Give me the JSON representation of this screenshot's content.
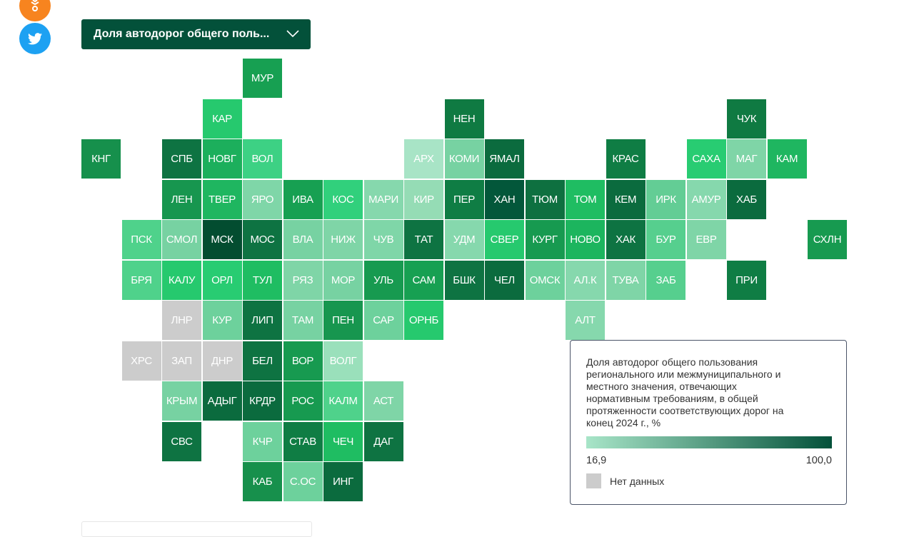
{
  "dropdown": {
    "label": "Доля автодорог общего поль...",
    "icon": "chevron-down-icon"
  },
  "social": [
    {
      "icon": "odnoklassniki-icon",
      "color": "#f7841f"
    },
    {
      "icon": "twitter-icon",
      "color": "#1da1f2"
    }
  ],
  "map": {
    "no_data_color": "#cccccc",
    "tiles": [
      {
        "label": "МУР",
        "color": "#17a052"
      },
      {
        "label": "КАР",
        "color": "#26c96e"
      },
      {
        "label": "НЕН",
        "color": "#0f7a42"
      },
      {
        "label": "ЧУК",
        "color": "#0f7a42"
      },
      {
        "label": "КНГ",
        "color": "#16904c"
      },
      {
        "label": "СПБ",
        "color": "#0e7342"
      },
      {
        "label": "НОВГ",
        "color": "#1caf5c"
      },
      {
        "label": "ВОЛ",
        "color": "#3dd184"
      },
      {
        "label": "АРХ",
        "color": "#a8e4c6"
      },
      {
        "label": "КОМИ",
        "color": "#77d2a2"
      },
      {
        "label": "ЯМАЛ",
        "color": "#0b6b3e"
      },
      {
        "label": "КРАС",
        "color": "#0f7d44"
      },
      {
        "label": "САХА",
        "color": "#28cc72"
      },
      {
        "label": "МАГ",
        "color": "#7fd5a7"
      },
      {
        "label": "КАМ",
        "color": "#1fb660"
      },
      {
        "label": "ЛЕН",
        "color": "#17964f"
      },
      {
        "label": "ТВЕР",
        "color": "#1fb660"
      },
      {
        "label": "ЯРО",
        "color": "#7fd6a8"
      },
      {
        "label": "ИВА",
        "color": "#17a052"
      },
      {
        "label": "КОС",
        "color": "#31d07c"
      },
      {
        "label": "МАРИ",
        "color": "#86d8ad"
      },
      {
        "label": "КИР",
        "color": "#95dcb5"
      },
      {
        "label": "ПЕР",
        "color": "#0f7d44"
      },
      {
        "label": "ХАН",
        "color": "#03573a"
      },
      {
        "label": "ТЮМ",
        "color": "#0e7040"
      },
      {
        "label": "ТОМ",
        "color": "#1fbd62"
      },
      {
        "label": "КЕМ",
        "color": "#0b6b3e"
      },
      {
        "label": "ИРК",
        "color": "#63cd95"
      },
      {
        "label": "АМУР",
        "color": "#86d8ad"
      },
      {
        "label": "ХАБ",
        "color": "#0b6b3e"
      },
      {
        "label": "ПСК",
        "color": "#4fd28b"
      },
      {
        "label": "СМОЛ",
        "color": "#77d2a2"
      },
      {
        "label": "МСК",
        "color": "#034d30"
      },
      {
        "label": "МОС",
        "color": "#0e7342"
      },
      {
        "label": "ВЛА",
        "color": "#77d2a2"
      },
      {
        "label": "НИЖ",
        "color": "#7fd5a7"
      },
      {
        "label": "ЧУВ",
        "color": "#7fd6a8"
      },
      {
        "label": "ТАТ",
        "color": "#0e7342"
      },
      {
        "label": "УДМ",
        "color": "#86d8ad"
      },
      {
        "label": "СВЕР",
        "color": "#26c96e"
      },
      {
        "label": "КУРГ",
        "color": "#179a50"
      },
      {
        "label": "НОВО",
        "color": "#1cb55e"
      },
      {
        "label": "ХАК",
        "color": "#0e7342"
      },
      {
        "label": "БУР",
        "color": "#56cf8e"
      },
      {
        "label": "ЕВР",
        "color": "#7fd5a7"
      },
      {
        "label": "СХЛН",
        "color": "#179a50"
      },
      {
        "label": "БРЯ",
        "color": "#4fd28b"
      },
      {
        "label": "КАЛУ",
        "color": "#26c96e"
      },
      {
        "label": "ОРЛ",
        "color": "#28cc72"
      },
      {
        "label": "ТУЛ",
        "color": "#1fbd62"
      },
      {
        "label": "РЯЗ",
        "color": "#7fd5a7"
      },
      {
        "label": "МОР",
        "color": "#77d2a2"
      },
      {
        "label": "УЛЬ",
        "color": "#179a50"
      },
      {
        "label": "САМ",
        "color": "#17a052"
      },
      {
        "label": "БШК",
        "color": "#0e7342"
      },
      {
        "label": "ЧЕЛ",
        "color": "#0b6b3e"
      },
      {
        "label": "ОМСК",
        "color": "#6dd19c"
      },
      {
        "label": "АЛ.К",
        "color": "#86d8ad"
      },
      {
        "label": "ТУВА",
        "color": "#7fd5a7"
      },
      {
        "label": "ЗАБ",
        "color": "#56cf8e"
      },
      {
        "label": "ПРИ",
        "color": "#0f7d44"
      },
      {
        "label": "ЛНР",
        "color": "#cccccc"
      },
      {
        "label": "КУР",
        "color": "#6dd19c"
      },
      {
        "label": "ЛИП",
        "color": "#0e7342"
      },
      {
        "label": "ТАМ",
        "color": "#77d2a2"
      },
      {
        "label": "ПЕН",
        "color": "#17964f"
      },
      {
        "label": "САР",
        "color": "#6dd19c"
      },
      {
        "label": "ОРНБ",
        "color": "#26c96e"
      },
      {
        "label": "АЛТ",
        "color": "#86d8ad"
      },
      {
        "label": "ХРС",
        "color": "#cccccc"
      },
      {
        "label": "ЗАП",
        "color": "#cccccc"
      },
      {
        "label": "ДНР",
        "color": "#cccccc"
      },
      {
        "label": "БЕЛ",
        "color": "#0e7342"
      },
      {
        "label": "ВОР",
        "color": "#179a50"
      },
      {
        "label": "ВОЛГ",
        "color": "#9ae0bb"
      },
      {
        "label": "КРЫМ",
        "color": "#77d2a2"
      },
      {
        "label": "АДЫГ",
        "color": "#0b6b3e"
      },
      {
        "label": "КРДР",
        "color": "#0b6b3e"
      },
      {
        "label": "РОС",
        "color": "#179a50"
      },
      {
        "label": "КАЛМ",
        "color": "#4fd28b"
      },
      {
        "label": "АСТ",
        "color": "#7fd5a7"
      },
      {
        "label": "СВС",
        "color": "#0e7342"
      },
      {
        "label": "КЧР",
        "color": "#6dd19c"
      },
      {
        "label": "СТАВ",
        "color": "#0f7d44"
      },
      {
        "label": "ЧЕЧ",
        "color": "#1fbd62"
      },
      {
        "label": "ДАГ",
        "color": "#0e7342"
      },
      {
        "label": "КАБ",
        "color": "#17904c"
      },
      {
        "label": "С.ОС",
        "color": "#6dd19c"
      },
      {
        "label": "ИНГ",
        "color": "#0b6b3e"
      }
    ]
  },
  "legend": {
    "title": "Доля автодорог общего пользования регионального или межмуниципального и местного значения, отвечающих нормативным требованиям, в общей протяженности соответствующих дорог на конец 2024 г., %",
    "min": "16,9",
    "max": "100,0",
    "color_min": "#a8e5c8",
    "color_max": "#03513a",
    "no_data_label": "Нет данных"
  }
}
